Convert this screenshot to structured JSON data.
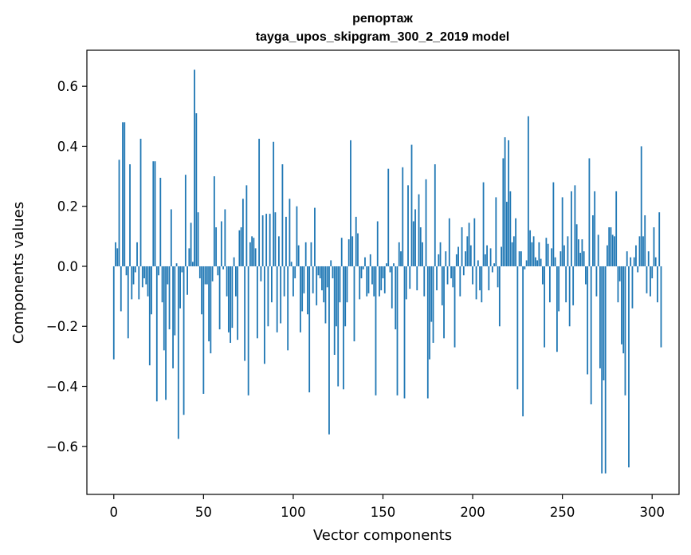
{
  "chart_data": {
    "type": "bar",
    "title": "репортаж",
    "subtitle": "tayga_upos_skipgram_300_2_2019 model",
    "xlabel": "Vector components",
    "ylabel": "Components values",
    "xlim": [
      -15,
      315
    ],
    "ylim": [
      -0.76,
      0.72
    ],
    "xticks": [
      0,
      50,
      100,
      150,
      200,
      250,
      300
    ],
    "yticks": [
      -0.6,
      -0.4,
      -0.2,
      0.0,
      0.2,
      0.4,
      0.6
    ],
    "xtick_labels": [
      "0",
      "50",
      "100",
      "150",
      "200",
      "250",
      "300"
    ],
    "ytick_labels": [
      "−0.6",
      "−0.4",
      "−0.2",
      "0.0",
      "0.2",
      "0.4",
      "0.6"
    ],
    "grid": false,
    "bar_color": "#1f77b4",
    "series": [
      {
        "x_start": 0,
        "values": [
          -0.31,
          0.08,
          0.06,
          0.355,
          -0.15,
          0.48,
          0.48,
          -0.03,
          -0.24,
          0.34,
          -0.11,
          -0.06,
          -0.02,
          0.08,
          -0.11,
          0.425,
          -0.07,
          -0.04,
          -0.06,
          -0.1,
          -0.33,
          -0.16,
          0.35,
          0.35,
          -0.45,
          -0.03,
          0.295,
          -0.12,
          -0.28,
          -0.445,
          -0.06,
          -0.21,
          0.19,
          -0.34,
          -0.23,
          0.01,
          -0.575,
          -0.14,
          -0.02,
          -0.495,
          0.305,
          -0.095,
          0.06,
          0.145,
          0.015,
          0.655,
          0.51,
          0.18,
          -0.04,
          -0.16,
          -0.425,
          -0.06,
          -0.06,
          -0.25,
          -0.29,
          -0.05,
          0.3,
          0.13,
          -0.03,
          -0.21,
          0.15,
          -0.01,
          0.19,
          -0.1,
          -0.22,
          -0.255,
          -0.205,
          0.03,
          -0.1,
          -0.245,
          0.12,
          0.13,
          0.225,
          -0.315,
          0.27,
          -0.43,
          0.08,
          0.1,
          0.095,
          0.06,
          -0.24,
          0.425,
          -0.05,
          0.17,
          -0.325,
          0.175,
          -0.2,
          0.175,
          -0.12,
          0.415,
          0.18,
          -0.22,
          0.1,
          -0.19,
          0.34,
          -0.1,
          0.165,
          -0.28,
          0.225,
          0.015,
          -0.1,
          -0.04,
          0.2,
          0.07,
          -0.22,
          -0.15,
          -0.09,
          0.08,
          -0.16,
          -0.42,
          0.08,
          -0.09,
          0.195,
          -0.13,
          -0.03,
          -0.04,
          -0.08,
          -0.12,
          -0.19,
          -0.07,
          -0.56,
          0.02,
          -0.04,
          -0.295,
          -0.2,
          -0.4,
          -0.12,
          0.095,
          -0.41,
          -0.2,
          -0.12,
          0.09,
          0.42,
          0.1,
          -0.25,
          0.165,
          0.11,
          -0.11,
          -0.04,
          -0.01,
          0.03,
          -0.1,
          -0.09,
          0.04,
          -0.06,
          -0.1,
          -0.43,
          0.15,
          -0.1,
          -0.08,
          -0.04,
          -0.09,
          0.01,
          0.325,
          -0.02,
          -0.14,
          0.01,
          -0.21,
          -0.43,
          0.08,
          0.05,
          0.33,
          -0.44,
          -0.11,
          0.27,
          -0.075,
          0.405,
          0.15,
          0.19,
          -0.08,
          0.24,
          0.13,
          0.08,
          -0.1,
          0.29,
          -0.44,
          -0.31,
          -0.185,
          -0.255,
          0.34,
          -0.08,
          0.04,
          0.08,
          -0.13,
          -0.24,
          0.05,
          -0.06,
          0.16,
          -0.04,
          -0.07,
          -0.27,
          0.04,
          0.065,
          -0.1,
          0.13,
          -0.03,
          0.05,
          0.1,
          0.145,
          0.07,
          -0.06,
          0.16,
          -0.11,
          0.02,
          -0.08,
          -0.12,
          0.28,
          0.04,
          0.07,
          -0.08,
          0.06,
          -0.02,
          0.01,
          0.23,
          -0.07,
          -0.2,
          0.065,
          0.36,
          0.43,
          0.215,
          0.42,
          0.25,
          0.08,
          0.1,
          0.16,
          -0.41,
          0.05,
          0.05,
          -0.5,
          -0.01,
          0.02,
          0.5,
          0.12,
          0.08,
          0.1,
          0.03,
          0.02,
          0.08,
          0.025,
          -0.06,
          -0.27,
          0.095,
          0.075,
          -0.12,
          0.06,
          0.28,
          0.03,
          -0.285,
          -0.15,
          0.05,
          0.23,
          0.07,
          -0.12,
          0.1,
          -0.2,
          0.25,
          -0.13,
          0.27,
          0.14,
          0.09,
          0.045,
          0.09,
          0.05,
          -0.06,
          -0.36,
          0.36,
          -0.46,
          0.17,
          0.25,
          -0.1,
          0.105,
          -0.34,
          -0.69,
          -0.38,
          -0.69,
          0.07,
          0.13,
          0.13,
          0.105,
          0.1,
          0.25,
          -0.12,
          -0.05,
          -0.26,
          -0.29,
          -0.43,
          0.05,
          -0.67,
          0.03,
          -0.14,
          0.03,
          0.07,
          -0.02,
          0.1,
          0.4,
          0.1,
          0.17,
          -0.09,
          0.05,
          -0.1,
          -0.04,
          0.13,
          0.03,
          -0.12,
          0.18,
          -0.27
        ]
      }
    ]
  }
}
